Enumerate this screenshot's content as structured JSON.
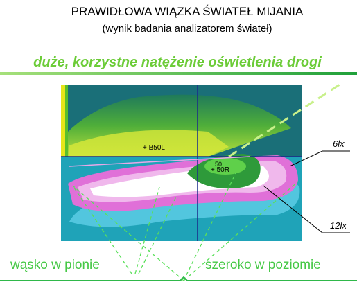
{
  "header": {
    "title": "PRAWIDŁOWA WIĄZKA ŚWIATEŁ MIJANIA",
    "subtitle": "(wynik badania analizatorem świateł)"
  },
  "headline": "duże, korzystne natężenie oświetlenia drogi",
  "image_labels": {
    "b50l": "+ B50L",
    "p50v": "50",
    "p50r": "+ 50R"
  },
  "callouts": {
    "low": "6lx",
    "high": "12lx"
  },
  "bottom": {
    "left": "wąsko w pionie",
    "right": "szeroko w poziomie"
  }
}
